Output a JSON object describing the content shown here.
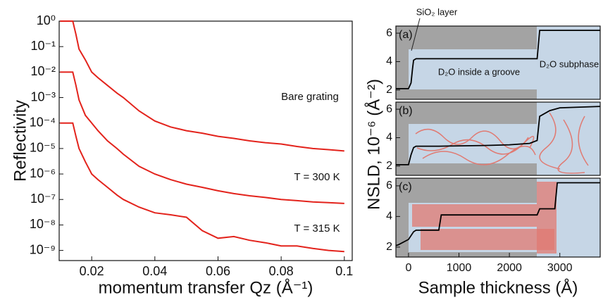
{
  "chart_data": [
    {
      "type": "line",
      "log_y": true,
      "ylabel": "Reflectivity",
      "xlabel": "momentum transfer Qz (Å⁻¹)",
      "xlim": [
        0.0097,
        0.1025
      ],
      "xticks": [
        0.02,
        0.04,
        0.06,
        0.08,
        0.1
      ],
      "ylim": [
        4e-10,
        1
      ],
      "yticks": [
        {
          "value": 1,
          "label": "10⁰"
        },
        {
          "value": 0.1,
          "label": "10⁻¹"
        },
        {
          "value": 0.01,
          "label": "10⁻²"
        },
        {
          "value": 0.001,
          "label": "10⁻³"
        },
        {
          "value": 0.0001,
          "label": "10⁻⁴"
        },
        {
          "value": 1e-05,
          "label": "10⁻⁵"
        },
        {
          "value": 1e-06,
          "label": "10⁻⁶"
        },
        {
          "value": 1e-07,
          "label": "10⁻⁷"
        },
        {
          "value": 1e-08,
          "label": "10⁻⁸"
        },
        {
          "value": 1e-09,
          "label": "10⁻⁹"
        }
      ],
      "x": [
        0.01,
        0.012,
        0.014,
        0.015,
        0.016,
        0.018,
        0.02,
        0.022,
        0.025,
        0.028,
        0.03,
        0.035,
        0.04,
        0.045,
        0.05,
        0.055,
        0.06,
        0.065,
        0.07,
        0.075,
        0.08,
        0.085,
        0.09,
        0.095,
        0.1
      ],
      "series": [
        {
          "color": "#e3231c",
          "values": [
            1,
            1,
            1,
            0.3,
            0.08,
            0.03,
            0.01,
            0.006,
            0.003,
            0.0015,
            0.001,
            0.0003,
            0.00012,
            7e-05,
            5e-05,
            4e-05,
            3e-05,
            2.5e-05,
            2e-05,
            1.7e-05,
            1.5e-05,
            1.2e-05,
            1e-05,
            9e-06,
            8e-06
          ]
        },
        {
          "color": "#e3231c",
          "values": [
            0.01,
            0.01,
            0.01,
            0.003,
            0.0008,
            0.0002,
            0.0001,
            5e-05,
            2e-05,
            1e-05,
            6e-06,
            2e-06,
            1e-06,
            6e-07,
            4e-07,
            3e-07,
            2.2e-07,
            1.7e-07,
            1.4e-07,
            1.2e-07,
            1e-07,
            9e-08,
            8e-08,
            7.5e-08,
            7e-08
          ]
        },
        {
          "color": "#e3231c",
          "values": [
            0.0001,
            0.0001,
            0.0001,
            3e-05,
            1e-05,
            3e-06,
            1e-06,
            6e-07,
            3e-07,
            1.5e-07,
            1e-07,
            5e-08,
            3e-08,
            2.5e-08,
            2e-08,
            6e-09,
            3e-09,
            3.5e-09,
            2.5e-09,
            2e-09,
            1.5e-09,
            1.5e-09,
            1.2e-09,
            1e-09,
            9e-10
          ]
        }
      ],
      "annotations": [
        "Bare grating",
        "T = 300 K",
        "T = 315 K"
      ]
    },
    {
      "type": "line",
      "label": "(a)",
      "xlim": [
        -250,
        3800
      ],
      "ylim": [
        1.35,
        6.5
      ],
      "yticks": [
        2,
        4,
        6
      ],
      "x": [
        -250,
        0,
        50,
        80,
        100,
        150,
        2550,
        2600,
        3800
      ],
      "series": [
        {
          "color": "#000000",
          "values": [
            2.1,
            2.1,
            2.5,
            3.5,
            4.1,
            4.2,
            4.2,
            6.2,
            6.2
          ]
        }
      ],
      "annotations": [
        "SiO₂ layer",
        "D₂O inside a groove",
        "D₂O subphase"
      ]
    },
    {
      "type": "line",
      "label": "(b)",
      "ylabel": "NSLD, 10⁻⁶ (Å⁻²)",
      "xlim": [
        -250,
        3800
      ],
      "ylim": [
        1.35,
        6.5
      ],
      "yticks": [
        2,
        4,
        6
      ],
      "x": [
        -250,
        0,
        50,
        100,
        150,
        600,
        1500,
        2000,
        2400,
        2550,
        2600,
        2800,
        3000,
        3800
      ],
      "series": [
        {
          "color": "#000000",
          "values": [
            2.1,
            2.1,
            2.8,
            3.3,
            3.4,
            3.4,
            3.45,
            3.5,
            3.6,
            3.8,
            5.5,
            5.9,
            6.1,
            6.2
          ]
        }
      ]
    },
    {
      "type": "line",
      "label": "(c)",
      "xlabel": "Sample thickness (Å)",
      "xlim": [
        -250,
        3800
      ],
      "ylim": [
        1.35,
        6.5
      ],
      "yticks": [
        2,
        4,
        6
      ],
      "xticks": [
        0,
        1000,
        2000,
        3000
      ],
      "x": [
        -250,
        -200,
        0,
        100,
        150,
        600,
        650,
        2550,
        2600,
        2900,
        2950,
        3800
      ],
      "series": [
        {
          "color": "#000000",
          "values": [
            2.1,
            2.15,
            2.5,
            3.0,
            3.1,
            3.1,
            4.1,
            4.1,
            4.5,
            4.5,
            6.2,
            6.2
          ]
        }
      ]
    }
  ]
}
